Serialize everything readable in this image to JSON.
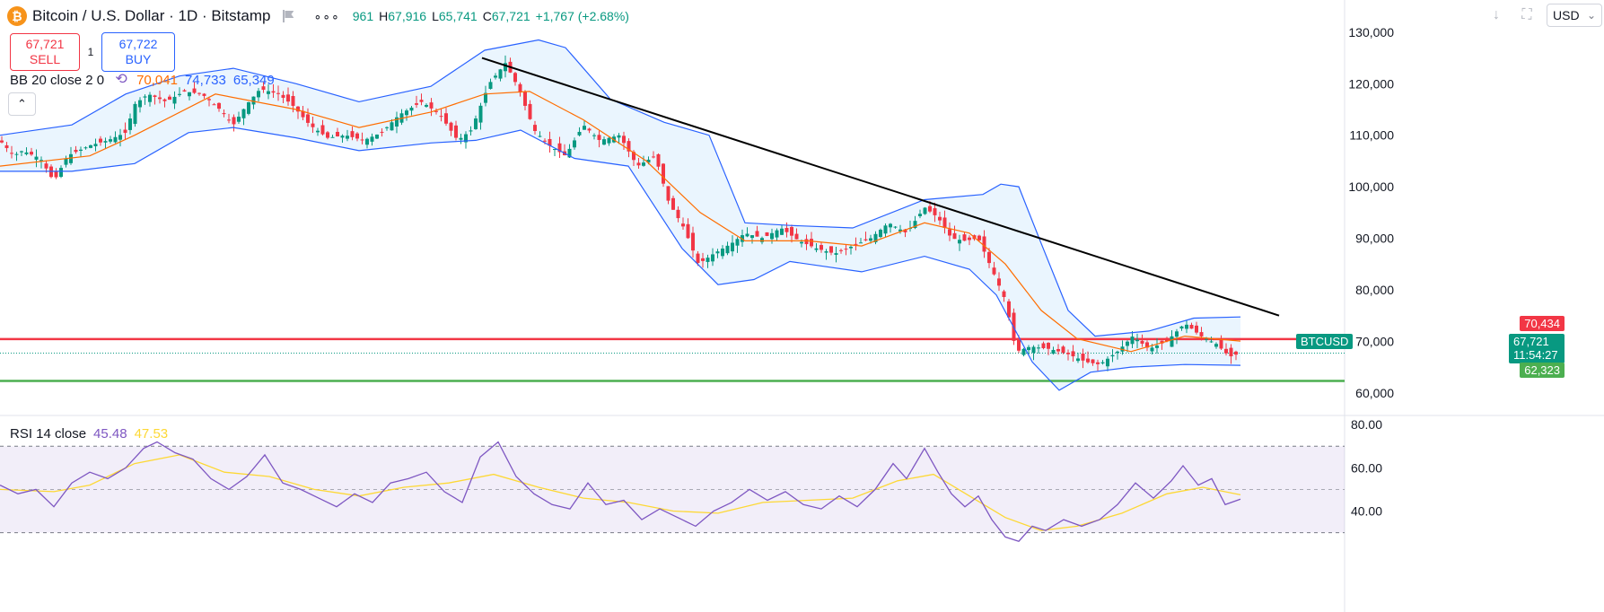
{
  "header": {
    "title": "Bitcoin / U.S. Dollar · 1D · Bitstamp",
    "logo_letter": "₿",
    "more_label": "∘∘∘",
    "open": "961",
    "high_key": "H",
    "high": "67,916",
    "low_key": "L",
    "low": "65,741",
    "close_key": "C",
    "close": "67,721",
    "change": "+1,767 (+2.68%)"
  },
  "trade": {
    "sell_price": "67,721",
    "sell_label": "SELL",
    "spread": "1",
    "buy_price": "67,722",
    "buy_label": "BUY"
  },
  "bb_legend": {
    "name": "BB 20 close 2 0",
    "basis": "70,041",
    "upper": "74,733",
    "lower": "65,349",
    "refresh_icon": "⟲"
  },
  "rsi_legend": {
    "name": "RSI 14 close",
    "rsi": "45.48",
    "ma": "47.53"
  },
  "collapse_label": "⌃",
  "toolbar": {
    "currency": "USD",
    "currency_caret": "⌄"
  },
  "price_labels": {
    "resistance": "70,434",
    "symbol": "BTCUSD",
    "last": "67,721",
    "countdown": "11:54:27",
    "support": "62,323"
  },
  "colors": {
    "up": "#089981",
    "down": "#f23645",
    "bb_basis": "#ff6d00",
    "bb_band": "#2962ff",
    "bb_fill": "#e3f2fd",
    "rsi": "#7e57c2",
    "rsi_ma": "#fdd835",
    "rsi_fill": "#7e57c2",
    "resistance": "#f23645",
    "support": "#4caf50",
    "trendline": "#000000"
  },
  "chart_data": {
    "type": "candlestick",
    "timeframe": "1D",
    "price_axis": {
      "ticks": [
        60000,
        70000,
        80000,
        90000,
        100000,
        110000,
        120000,
        130000
      ],
      "tick_labels": [
        "60,000",
        "70,000",
        "80,000",
        "90,000",
        "100,000",
        "110,000",
        "120,000",
        "130,000"
      ],
      "range": [
        57000,
        130500
      ]
    },
    "close_path": [
      [
        0,
        109000
      ],
      [
        15,
        106000
      ],
      [
        25,
        107000
      ],
      [
        45,
        105500
      ],
      [
        60,
        101000
      ],
      [
        75,
        106000
      ],
      [
        100,
        108000
      ],
      [
        120,
        109000
      ],
      [
        140,
        110500
      ],
      [
        150,
        116000
      ],
      [
        165,
        118000
      ],
      [
        185,
        116500
      ],
      [
        205,
        118500
      ],
      [
        225,
        118000
      ],
      [
        245,
        115000
      ],
      [
        260,
        112000
      ],
      [
        275,
        116000
      ],
      [
        290,
        119000
      ],
      [
        310,
        118000
      ],
      [
        325,
        116000
      ],
      [
        345,
        112000
      ],
      [
        365,
        109500
      ],
      [
        385,
        110000
      ],
      [
        405,
        109000
      ],
      [
        425,
        110500
      ],
      [
        445,
        114000
      ],
      [
        470,
        116500
      ],
      [
        490,
        114000
      ],
      [
        510,
        109000
      ],
      [
        525,
        111000
      ],
      [
        545,
        120000
      ],
      [
        563,
        124000
      ],
      [
        578,
        119000
      ],
      [
        595,
        111000
      ],
      [
        612,
        108000
      ],
      [
        630,
        106000
      ],
      [
        650,
        112000
      ],
      [
        668,
        109000
      ],
      [
        690,
        110000
      ],
      [
        710,
        104000
      ],
      [
        730,
        106000
      ],
      [
        745,
        97000
      ],
      [
        762,
        92000
      ],
      [
        778,
        85000
      ],
      [
        795,
        87000
      ],
      [
        815,
        89000
      ],
      [
        830,
        91000
      ],
      [
        850,
        90000
      ],
      [
        870,
        92000
      ],
      [
        890,
        89500
      ],
      [
        910,
        88000
      ],
      [
        930,
        87000
      ],
      [
        950,
        88500
      ],
      [
        970,
        90000
      ],
      [
        990,
        93000
      ],
      [
        1010,
        91000
      ],
      [
        1030,
        96000
      ],
      [
        1045,
        94000
      ],
      [
        1060,
        90000
      ],
      [
        1075,
        89500
      ],
      [
        1090,
        90000
      ],
      [
        1105,
        84000
      ],
      [
        1120,
        78000
      ],
      [
        1132,
        68000
      ],
      [
        1148,
        69000
      ],
      [
        1170,
        68500
      ],
      [
        1190,
        67500
      ],
      [
        1210,
        66000
      ],
      [
        1225,
        65500
      ],
      [
        1245,
        68000
      ],
      [
        1262,
        71000
      ],
      [
        1280,
        68500
      ],
      [
        1300,
        70000
      ],
      [
        1320,
        73500
      ],
      [
        1338,
        71000
      ],
      [
        1355,
        69500
      ],
      [
        1370,
        67000
      ],
      [
        1382,
        67721
      ]
    ],
    "bb_basis_path": [
      [
        0,
        104000
      ],
      [
        100,
        106000
      ],
      [
        150,
        110000
      ],
      [
        240,
        118000
      ],
      [
        330,
        115000
      ],
      [
        400,
        111500
      ],
      [
        480,
        114500
      ],
      [
        540,
        118000
      ],
      [
        590,
        118500
      ],
      [
        650,
        113000
      ],
      [
        720,
        105000
      ],
      [
        780,
        95000
      ],
      [
        830,
        89500
      ],
      [
        900,
        89500
      ],
      [
        960,
        88500
      ],
      [
        1030,
        93000
      ],
      [
        1080,
        91000
      ],
      [
        1120,
        85000
      ],
      [
        1160,
        76000
      ],
      [
        1200,
        70500
      ],
      [
        1260,
        68000
      ],
      [
        1320,
        71000
      ],
      [
        1382,
        70041
      ]
    ],
    "bb_upper_path": [
      [
        0,
        110000
      ],
      [
        80,
        112000
      ],
      [
        140,
        118000
      ],
      [
        200,
        121500
      ],
      [
        260,
        123000
      ],
      [
        330,
        120000
      ],
      [
        400,
        116500
      ],
      [
        480,
        119500
      ],
      [
        540,
        126500
      ],
      [
        600,
        128500
      ],
      [
        630,
        127000
      ],
      [
        680,
        117000
      ],
      [
        740,
        112500
      ],
      [
        790,
        110000
      ],
      [
        830,
        93000
      ],
      [
        880,
        92500
      ],
      [
        950,
        92000
      ],
      [
        1030,
        97500
      ],
      [
        1095,
        98500
      ],
      [
        1115,
        100500
      ],
      [
        1135,
        100000
      ],
      [
        1160,
        89000
      ],
      [
        1190,
        76000
      ],
      [
        1220,
        71000
      ],
      [
        1280,
        72000
      ],
      [
        1330,
        74500
      ],
      [
        1382,
        74733
      ]
    ],
    "bb_lower_path": [
      [
        0,
        103000
      ],
      [
        80,
        103000
      ],
      [
        150,
        104500
      ],
      [
        210,
        110500
      ],
      [
        260,
        111500
      ],
      [
        330,
        109500
      ],
      [
        400,
        107000
      ],
      [
        480,
        108500
      ],
      [
        530,
        109000
      ],
      [
        580,
        111000
      ],
      [
        640,
        105500
      ],
      [
        700,
        104000
      ],
      [
        760,
        88000
      ],
      [
        800,
        81000
      ],
      [
        840,
        82000
      ],
      [
        880,
        85500
      ],
      [
        960,
        83500
      ],
      [
        1030,
        86500
      ],
      [
        1080,
        84000
      ],
      [
        1110,
        79000
      ],
      [
        1150,
        66000
      ],
      [
        1180,
        60500
      ],
      [
        1215,
        64000
      ],
      [
        1260,
        65000
      ],
      [
        1320,
        65500
      ],
      [
        1382,
        65349
      ]
    ],
    "trendline": [
      [
        537,
        125000
      ],
      [
        1425,
        75000
      ]
    ],
    "horizontal_lines": [
      {
        "name": "resistance",
        "price": 70434
      },
      {
        "name": "support",
        "price": 62323
      },
      {
        "name": "last-price",
        "price": 67721
      }
    ],
    "rsi_axis": {
      "ticks": [
        40,
        60,
        80
      ],
      "tick_labels": [
        "40.00",
        "60.00",
        "80.00"
      ],
      "band": [
        30,
        70
      ],
      "range": [
        29,
        83
      ]
    },
    "rsi_path": [
      [
        0,
        52
      ],
      [
        20,
        48
      ],
      [
        40,
        50
      ],
      [
        60,
        42
      ],
      [
        80,
        53
      ],
      [
        100,
        58
      ],
      [
        120,
        55
      ],
      [
        140,
        60
      ],
      [
        160,
        69
      ],
      [
        175,
        72
      ],
      [
        195,
        67
      ],
      [
        215,
        64
      ],
      [
        235,
        55
      ],
      [
        255,
        50
      ],
      [
        275,
        56
      ],
      [
        295,
        66
      ],
      [
        315,
        53
      ],
      [
        335,
        50
      ],
      [
        355,
        46
      ],
      [
        375,
        42
      ],
      [
        395,
        48
      ],
      [
        415,
        44
      ],
      [
        435,
        53
      ],
      [
        455,
        55
      ],
      [
        475,
        58
      ],
      [
        495,
        49
      ],
      [
        515,
        44
      ],
      [
        535,
        65
      ],
      [
        555,
        72
      ],
      [
        575,
        56
      ],
      [
        595,
        48
      ],
      [
        615,
        43
      ],
      [
        635,
        41
      ],
      [
        655,
        53
      ],
      [
        675,
        43
      ],
      [
        695,
        45
      ],
      [
        715,
        36
      ],
      [
        735,
        41
      ],
      [
        755,
        37
      ],
      [
        775,
        33
      ],
      [
        795,
        40
      ],
      [
        815,
        44
      ],
      [
        835,
        50
      ],
      [
        855,
        45
      ],
      [
        875,
        49
      ],
      [
        895,
        43
      ],
      [
        915,
        41
      ],
      [
        935,
        47
      ],
      [
        955,
        42
      ],
      [
        975,
        50
      ],
      [
        995,
        62
      ],
      [
        1010,
        55
      ],
      [
        1030,
        69
      ],
      [
        1045,
        58
      ],
      [
        1060,
        48
      ],
      [
        1075,
        42
      ],
      [
        1090,
        47
      ],
      [
        1105,
        36
      ],
      [
        1120,
        28
      ],
      [
        1135,
        26
      ],
      [
        1150,
        33
      ],
      [
        1165,
        31
      ],
      [
        1185,
        36
      ],
      [
        1205,
        33
      ],
      [
        1225,
        36
      ],
      [
        1245,
        43
      ],
      [
        1265,
        53
      ],
      [
        1285,
        46
      ],
      [
        1305,
        54
      ],
      [
        1318,
        61
      ],
      [
        1335,
        52
      ],
      [
        1350,
        55
      ],
      [
        1365,
        43
      ],
      [
        1382,
        45.48
      ]
    ],
    "rsi_ma_path": [
      [
        0,
        50
      ],
      [
        60,
        49
      ],
      [
        100,
        52
      ],
      [
        150,
        62
      ],
      [
        200,
        66
      ],
      [
        250,
        58
      ],
      [
        300,
        56
      ],
      [
        350,
        50
      ],
      [
        400,
        47
      ],
      [
        450,
        51
      ],
      [
        500,
        53
      ],
      [
        550,
        57
      ],
      [
        600,
        51
      ],
      [
        650,
        46
      ],
      [
        700,
        44
      ],
      [
        750,
        40
      ],
      [
        800,
        39
      ],
      [
        850,
        44
      ],
      [
        900,
        45
      ],
      [
        950,
        46
      ],
      [
        1000,
        54
      ],
      [
        1040,
        57
      ],
      [
        1080,
        47
      ],
      [
        1120,
        37
      ],
      [
        1160,
        31
      ],
      [
        1200,
        33
      ],
      [
        1250,
        39
      ],
      [
        1300,
        48
      ],
      [
        1340,
        51
      ],
      [
        1382,
        47.53
      ]
    ]
  }
}
